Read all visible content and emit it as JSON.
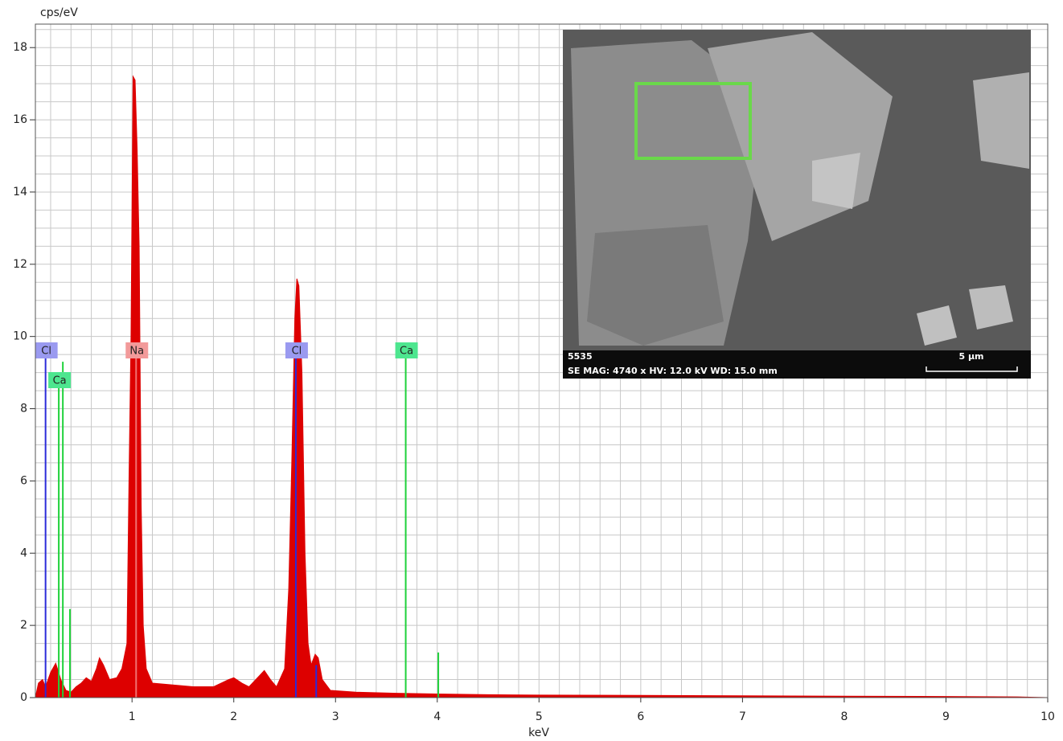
{
  "chart_data": {
    "type": "spectrum",
    "ylabel": "cps/eV",
    "xlabel": "keV",
    "xlim": [
      0.05,
      10
    ],
    "ylim": [
      0,
      18.65
    ],
    "xticks": [
      1,
      2,
      3,
      4,
      5,
      6,
      7,
      8,
      9,
      10
    ],
    "yticks": [
      0,
      2,
      4,
      6,
      8,
      10,
      12,
      14,
      16,
      18
    ],
    "xgrid": [
      0.2,
      0.4,
      0.6,
      0.8,
      1.0,
      1.2,
      1.4,
      1.6,
      1.8,
      2.0,
      2.2,
      2.4,
      2.6,
      2.8,
      3.0,
      3.2,
      3.4,
      3.6,
      3.8,
      4.0,
      4.2,
      4.4,
      4.6,
      4.8,
      5.0,
      5.2,
      5.4,
      5.6,
      5.8,
      6.0,
      6.2,
      6.4,
      6.6,
      6.8,
      7.0,
      7.2,
      7.4,
      7.6,
      7.8,
      8.0,
      8.2,
      8.4,
      8.6,
      8.8,
      9.0,
      9.2,
      9.4,
      9.6,
      9.8
    ],
    "ygrid": [
      0.5,
      1,
      1.5,
      2,
      2.5,
      3,
      3.5,
      4,
      4.5,
      5,
      5.5,
      6,
      6.5,
      7,
      7.5,
      8,
      8.5,
      9,
      9.5,
      10,
      10.5,
      11,
      11.5,
      12,
      12.5,
      13,
      13.5,
      14,
      14.5,
      15,
      15.5,
      16,
      16.5,
      17,
      17.5,
      18,
      18.5
    ],
    "series": [
      {
        "color": "#dd0000",
        "x": [
          0.05,
          0.08,
          0.12,
          0.15,
          0.2,
          0.25,
          0.3,
          0.35,
          0.4,
          0.45,
          0.5,
          0.55,
          0.6,
          0.65,
          0.68,
          0.72,
          0.78,
          0.85,
          0.9,
          0.95,
          0.97,
          0.99,
          1.01,
          1.03,
          1.05,
          1.07,
          1.09,
          1.11,
          1.14,
          1.2,
          1.4,
          1.6,
          1.8,
          1.95,
          2.0,
          2.08,
          2.15,
          2.25,
          2.3,
          2.36,
          2.42,
          2.5,
          2.54,
          2.57,
          2.6,
          2.62,
          2.64,
          2.67,
          2.7,
          2.73,
          2.76,
          2.8,
          2.83,
          2.87,
          2.95,
          3.2,
          3.6,
          4.0,
          4.5,
          5.0,
          6.0,
          7.0,
          8.0,
          9.0,
          9.7,
          10.0
        ],
        "values": [
          0,
          0.4,
          0.5,
          0.3,
          0.7,
          0.95,
          0.5,
          0.2,
          0.15,
          0.3,
          0.4,
          0.55,
          0.45,
          0.8,
          1.1,
          0.9,
          0.5,
          0.55,
          0.8,
          1.5,
          6,
          10,
          17.2,
          17.1,
          15.2,
          12.5,
          5.3,
          2,
          0.8,
          0.4,
          0.35,
          0.3,
          0.3,
          0.5,
          0.55,
          0.4,
          0.3,
          0.6,
          0.75,
          0.5,
          0.3,
          0.8,
          3,
          6.5,
          10.5,
          11.6,
          11.4,
          9,
          4,
          1.5,
          0.9,
          1.2,
          1.1,
          0.5,
          0.2,
          0.15,
          0.12,
          0.1,
          0.08,
          0.07,
          0.06,
          0.05,
          0.04,
          0.03,
          0.02,
          0
        ]
      }
    ],
    "element_lines": [
      {
        "element": "Cl",
        "color": "#2b2bd9",
        "label_color": "#9a9af0",
        "lines": [
          {
            "x": 0.15,
            "height": 9.5
          },
          {
            "x": 2.61,
            "height": 9.5
          },
          {
            "x": 2.81,
            "height": 0.9
          }
        ]
      },
      {
        "element": "Ca",
        "color": "#1fd13a",
        "label_color": "#4de68f",
        "lines": [
          {
            "x": 0.28,
            "height": 8.9
          },
          {
            "x": 0.32,
            "height": 9.3
          },
          {
            "x": 0.39,
            "height": 2.45
          },
          {
            "x": 3.69,
            "height": 9.5
          },
          {
            "x": 4.01,
            "height": 1.25
          }
        ]
      },
      {
        "element": "Na",
        "color": "#f07070",
        "label_color": "#f29a9a",
        "lines": [
          {
            "x": 1.04,
            "height": 9.5
          }
        ]
      }
    ],
    "element_labels": [
      {
        "element": "Cl",
        "x": 0.15
      },
      {
        "element": "Ca",
        "x": 0.28
      },
      {
        "element": "Na",
        "x": 1.04
      },
      {
        "element": "Cl",
        "x": 2.61
      },
      {
        "element": "Ca",
        "x": 3.69
      }
    ],
    "inset": {
      "id": "5535",
      "info": "SE  MAG: 4740 x  HV: 12.0 kV  WD: 15.0 mm",
      "scale": "5 µm"
    }
  }
}
